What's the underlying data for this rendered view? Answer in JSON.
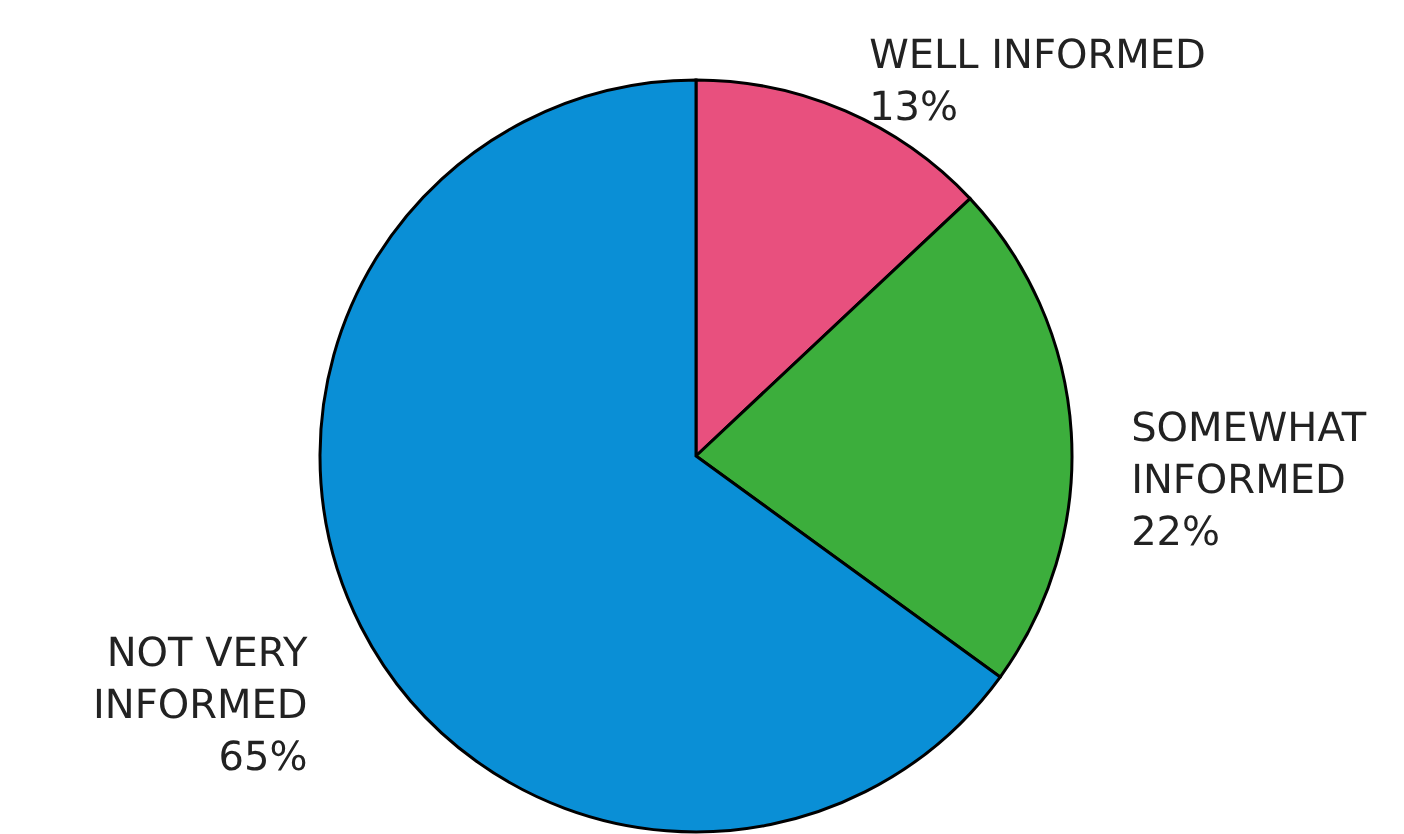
{
  "chart_data": {
    "type": "pie",
    "categories": [
      "WELL INFORMED",
      "SOMEWHAT INFORMED",
      "NOT VERY INFORMED"
    ],
    "values": [
      13,
      22,
      65
    ],
    "colors": [
      "#e8507e",
      "#3cae3c",
      "#0a8fd6"
    ],
    "value_labels": [
      "13%",
      "22%",
      "65%"
    ]
  }
}
